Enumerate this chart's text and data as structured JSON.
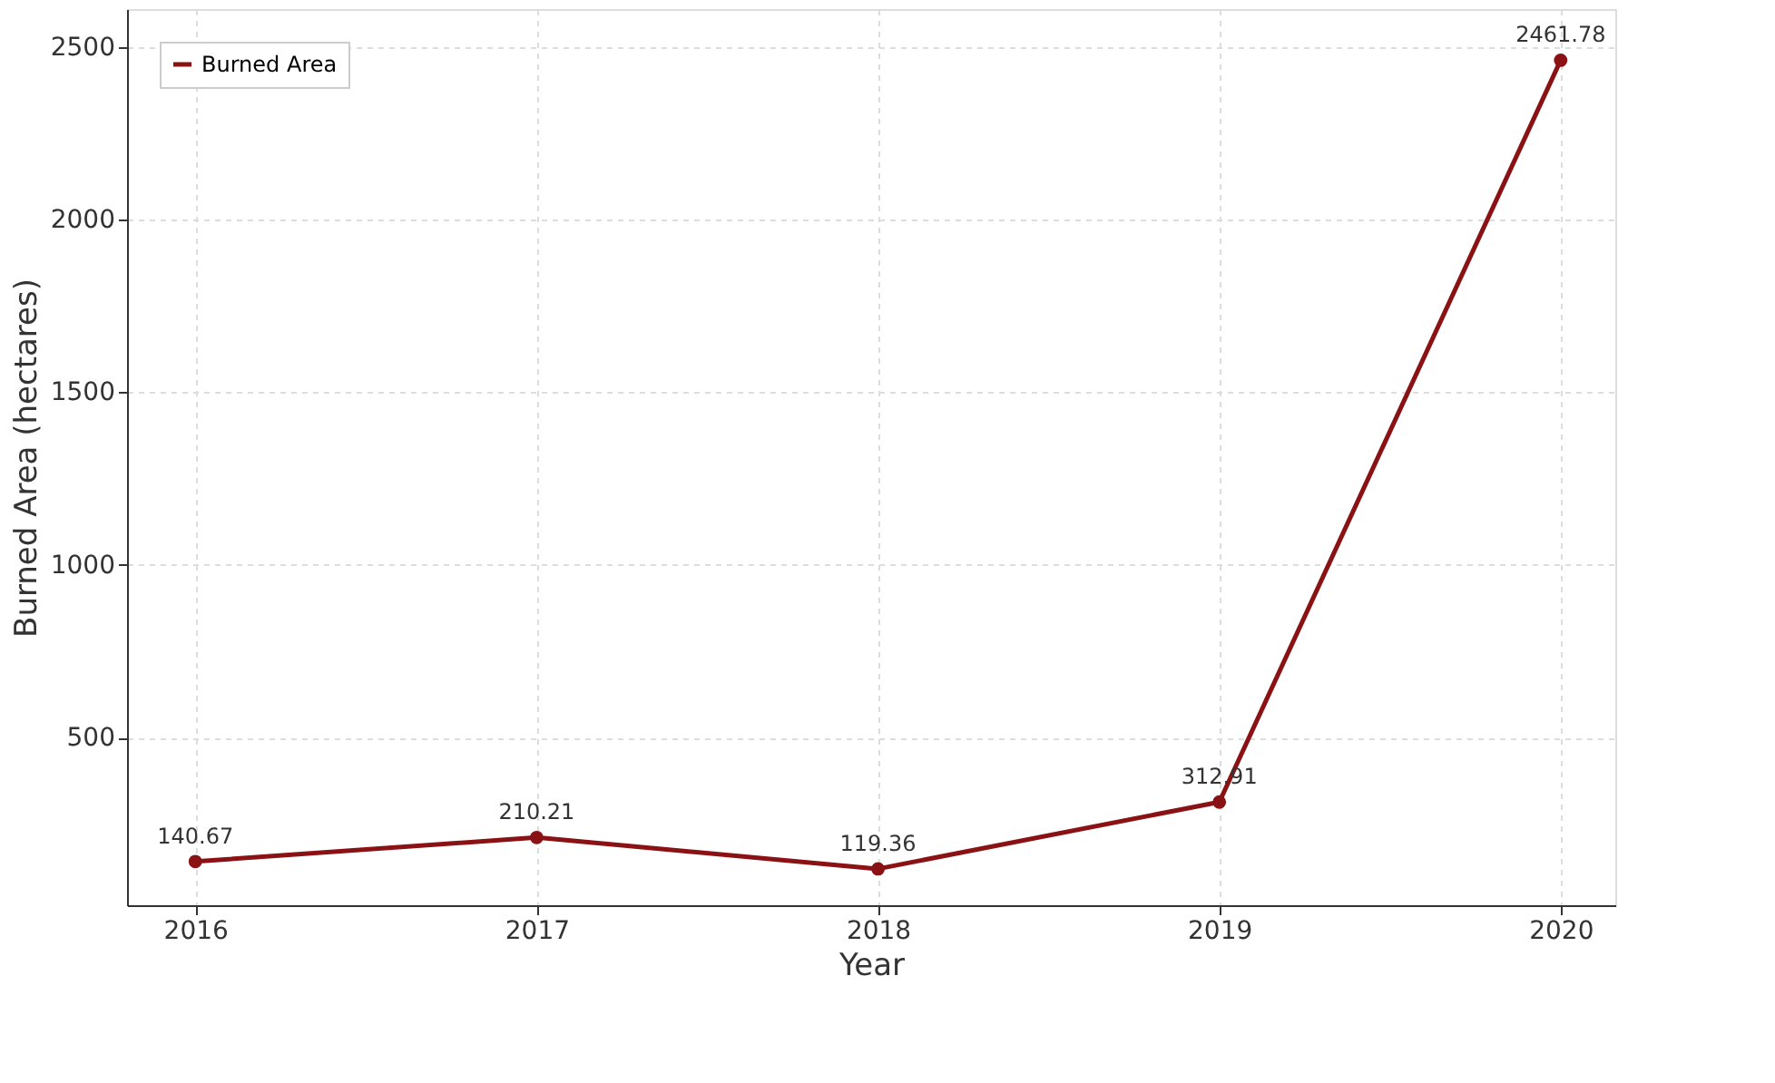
{
  "chart_data": {
    "type": "line",
    "xlabel": "Year",
    "ylabel": "Burned Area (hectares)",
    "x": [
      2016,
      2017,
      2018,
      2019,
      2020
    ],
    "series": [
      {
        "name": "Burned Area",
        "color": "#8b1214",
        "values": [
          140.67,
          210.21,
          119.36,
          312.91,
          2461.78
        ]
      }
    ],
    "xlim": [
      2015.8,
      2020.16
    ],
    "xticks": [
      2016,
      2017,
      2018,
      2019,
      2020
    ],
    "ylim": [
      14,
      2610
    ],
    "yticks": [
      500,
      1000,
      1500,
      2000,
      2500
    ],
    "grid": true,
    "legend": "top left",
    "marker": "circle",
    "line_style": "solid",
    "data_labels": true
  }
}
